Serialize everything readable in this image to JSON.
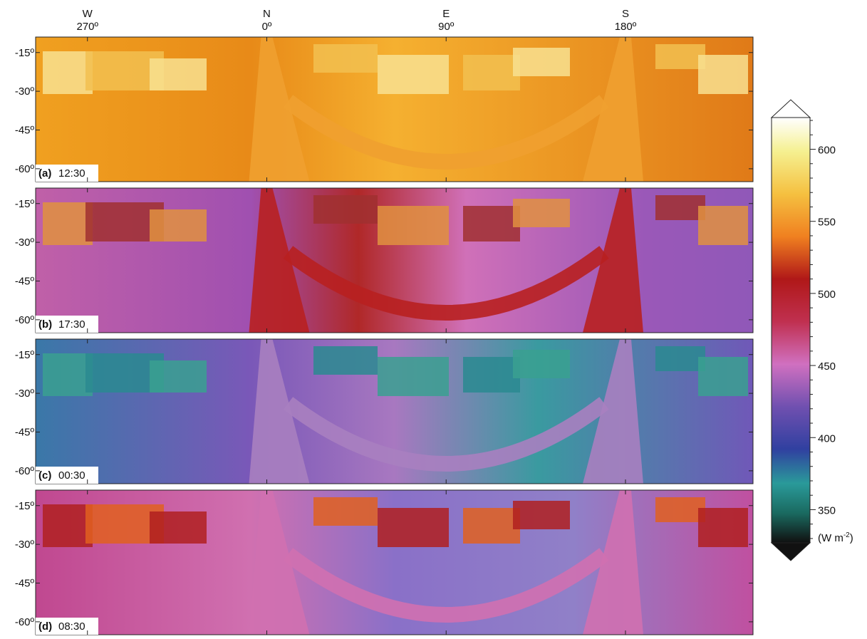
{
  "figure": {
    "azimuth_axis": {
      "xlim": [
        -116,
        244
      ],
      "ticks": [
        {
          "value": -90,
          "label": "270º",
          "dir": "W"
        },
        {
          "value": 0,
          "label": "0º",
          "dir": "N"
        },
        {
          "value": 90,
          "label": "90º",
          "dir": "E"
        },
        {
          "value": 180,
          "label": "180º",
          "dir": "S"
        }
      ]
    },
    "elevation_axis": {
      "ylim": [
        -9,
        -65
      ],
      "ticks": [
        {
          "value": -15,
          "label": "-15º"
        },
        {
          "value": -30,
          "label": "-30º"
        },
        {
          "value": -45,
          "label": "-45º"
        },
        {
          "value": -60,
          "label": "-60º"
        }
      ]
    },
    "panels": [
      {
        "letter": "(a)",
        "time": "12:30"
      },
      {
        "letter": "(b)",
        "time": "17:30"
      },
      {
        "letter": "(c)",
        "time": "00:30"
      },
      {
        "letter": "(d)",
        "time": "08:30"
      }
    ],
    "colorbar": {
      "range": [
        327,
        622
      ],
      "ticks": [
        350,
        400,
        450,
        500,
        550,
        600
      ],
      "minor_ticks": [
        330,
        340,
        360,
        370,
        380,
        390,
        410,
        420,
        430,
        440,
        460,
        470,
        480,
        490,
        510,
        520,
        530,
        540,
        560,
        570,
        580,
        590,
        610,
        620
      ],
      "unit": "(W m",
      "unit_sup": "-2",
      "unit_end": ")"
    }
  }
}
